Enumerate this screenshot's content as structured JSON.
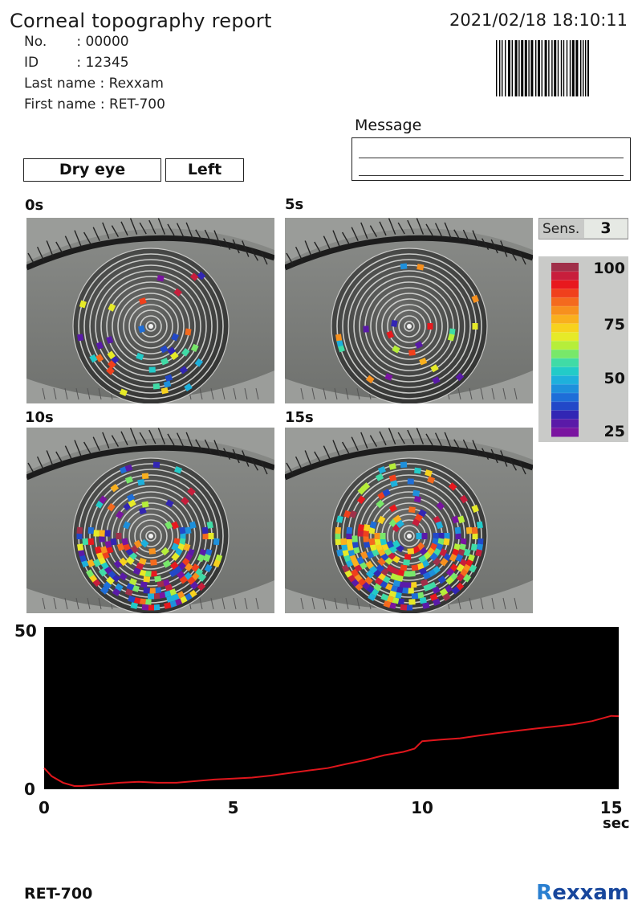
{
  "header": {
    "title": "Corneal topography report",
    "datetime": "2021/02/18 18:10:11"
  },
  "patient": {
    "no_label": "No.",
    "no_value": ": 00000",
    "id_label": "ID",
    "id_value": ": 12345",
    "last_name_label": "Last name",
    "last_name_value": ": Rexxam",
    "first_name_label": "First name",
    "first_name_value": ": RET-700"
  },
  "message": {
    "label": "Message"
  },
  "tags": {
    "exam": "Dry eye",
    "eye": "Left"
  },
  "panels": [
    {
      "label": "0s"
    },
    {
      "label": "5s"
    },
    {
      "label": "10s"
    },
    {
      "label": "15s"
    }
  ],
  "sensitivity": {
    "label": "Sens.",
    "value": "3"
  },
  "color_scale": {
    "ticks": [
      "100",
      "75",
      "50",
      "25"
    ],
    "colors": [
      "#a0304a",
      "#c81e3c",
      "#e8191e",
      "#f0401c",
      "#f46a1e",
      "#f7901e",
      "#f9b01e",
      "#f7d21e",
      "#e6ea28",
      "#b6ee3a",
      "#78e86a",
      "#40dba6",
      "#22cbc8",
      "#1eb0dc",
      "#1e90dc",
      "#1e6ed8",
      "#2248c8",
      "#3226b4",
      "#5a1aa8",
      "#7a14a0"
    ]
  },
  "chart_data": {
    "type": "line",
    "x": [
      0,
      0.2,
      0.5,
      0.8,
      1.0,
      1.5,
      2.0,
      2.5,
      3.0,
      3.5,
      4.0,
      4.5,
      5.0,
      5.5,
      6.0,
      6.5,
      7.0,
      7.5,
      8.0,
      8.5,
      9.0,
      9.5,
      9.8,
      10.0,
      10.5,
      11.0,
      11.5,
      12.0,
      12.5,
      13.0,
      13.5,
      14.0,
      14.5,
      15.0,
      15.2
    ],
    "series": [
      {
        "values": [
          6.5,
          4.0,
          2.0,
          1.0,
          1.0,
          1.5,
          2.0,
          2.3,
          2.0,
          2.0,
          2.5,
          3.0,
          3.3,
          3.6,
          4.2,
          5.0,
          5.8,
          6.5,
          7.8,
          9.0,
          10.5,
          11.5,
          12.5,
          14.8,
          15.3,
          15.7,
          16.5,
          17.3,
          18.0,
          18.7,
          19.3,
          20.0,
          21.0,
          22.6,
          22.5
        ],
        "color": "#e0161c"
      }
    ],
    "xticks": [
      "0",
      "5",
      "10",
      "15"
    ],
    "yticks": [
      "50",
      "0"
    ],
    "xlabel": "sec",
    "xlim": [
      0,
      15.2
    ],
    "ylim": [
      0,
      50
    ],
    "background": "#000000"
  },
  "footer": {
    "model": "RET-700",
    "logo_r": "R",
    "logo_rest": "exxam"
  }
}
